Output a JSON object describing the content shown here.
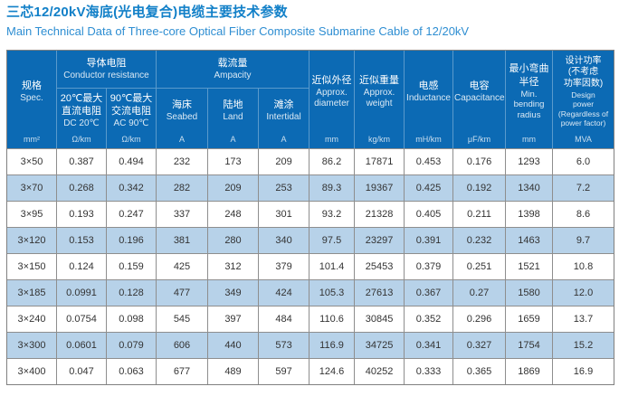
{
  "title": {
    "zh": "三芯12/20kV海底(光电复合)电缆主要技术参数",
    "en": "Main Technical Data of Three-core Optical Fiber Composite Submarine Cable of 12/20kV"
  },
  "table": {
    "columns": {
      "spec": {
        "zh": "规格",
        "en": "Spec."
      },
      "conductor_resistance": {
        "zh": "导体电阻",
        "en": "Conductor resistance"
      },
      "dc_resistance": {
        "zh": "20℃最大\n直流电阻",
        "en": "DC 20℃"
      },
      "ac_resistance": {
        "zh": "90℃最大\n交流电阻",
        "en": "AC 90℃"
      },
      "ampacity": {
        "zh": "载流量",
        "en": "Ampacity"
      },
      "seabed": {
        "zh": "海床",
        "en": "Seabed"
      },
      "land": {
        "zh": "陆地",
        "en": "Land"
      },
      "intertidal": {
        "zh": "滩涂",
        "en": "Intertidal"
      },
      "diameter": {
        "zh": "近似外径",
        "en": "Approx.\ndiameter"
      },
      "weight": {
        "zh": "近似重量",
        "en": "Approx.\nweight"
      },
      "inductance": {
        "zh": "电感",
        "en": "Inductance"
      },
      "capacitance": {
        "zh": "电容",
        "en": "Capacitance"
      },
      "bending_radius": {
        "zh": "最小弯曲\n半径",
        "en": "Min.\nbending\nradius"
      },
      "design_power": {
        "zh": "设计功率\n(不考虑\n功率因数)",
        "en": "Design\npower\n(Regardless of\npower factor)"
      }
    },
    "units": [
      "mm²",
      "Ω/km",
      "Ω/km",
      "A",
      "A",
      "A",
      "mm",
      "kg/km",
      "mH/km",
      "μF/km",
      "mm",
      "MVA"
    ],
    "rows": [
      [
        "3×50",
        "0.387",
        "0.494",
        "232",
        "173",
        "209",
        "86.2",
        "17871",
        "0.453",
        "0.176",
        "1293",
        "6.0"
      ],
      [
        "3×70",
        "0.268",
        "0.342",
        "282",
        "209",
        "253",
        "89.3",
        "19367",
        "0.425",
        "0.192",
        "1340",
        "7.2"
      ],
      [
        "3×95",
        "0.193",
        "0.247",
        "337",
        "248",
        "301",
        "93.2",
        "21328",
        "0.405",
        "0.211",
        "1398",
        "8.6"
      ],
      [
        "3×120",
        "0.153",
        "0.196",
        "381",
        "280",
        "340",
        "97.5",
        "23297",
        "0.391",
        "0.232",
        "1463",
        "9.7"
      ],
      [
        "3×150",
        "0.124",
        "0.159",
        "425",
        "312",
        "379",
        "101.4",
        "25453",
        "0.379",
        "0.251",
        "1521",
        "10.8"
      ],
      [
        "3×185",
        "0.0991",
        "0.128",
        "477",
        "349",
        "424",
        "105.3",
        "27613",
        "0.367",
        "0.27",
        "1580",
        "12.0"
      ],
      [
        "3×240",
        "0.0754",
        "0.098",
        "545",
        "397",
        "484",
        "110.6",
        "30845",
        "0.352",
        "0.296",
        "1659",
        "13.7"
      ],
      [
        "3×300",
        "0.0601",
        "0.079",
        "606",
        "440",
        "573",
        "116.9",
        "34725",
        "0.341",
        "0.327",
        "1754",
        "15.2"
      ],
      [
        "3×400",
        "0.047",
        "0.063",
        "677",
        "489",
        "597",
        "124.6",
        "40252",
        "0.333",
        "0.365",
        "1869",
        "16.9"
      ]
    ],
    "colors": {
      "header_bg": "#0c6ab4",
      "alt_row_bg": "#b7d2e9",
      "title_zh": "#1280c8",
      "title_en": "#2e8ed2",
      "grid": "#8e8e8e"
    }
  }
}
